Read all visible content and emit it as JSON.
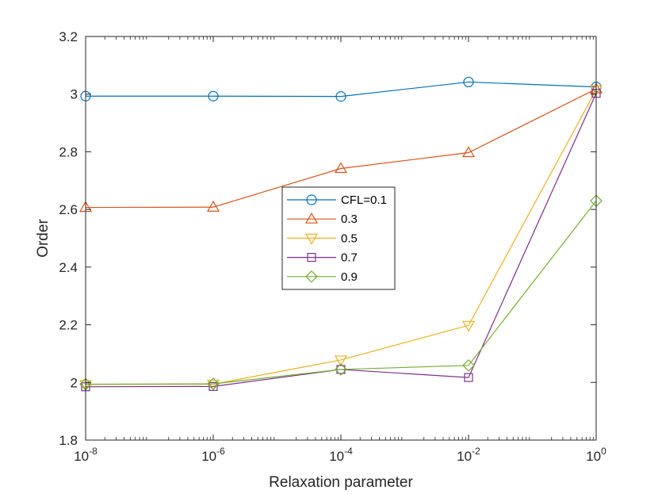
{
  "chart_data": {
    "type": "line",
    "xscale": "log",
    "x": [
      1e-08,
      1e-06,
      0.0001,
      0.01,
      1
    ],
    "xlim": [
      1e-08,
      1
    ],
    "ylim": [
      1.8,
      3.2
    ],
    "xlabel": "Relaxation parameter",
    "ylabel": "Order",
    "xticks": [
      {
        "value": 1e-08,
        "base": "10",
        "exp": "-8"
      },
      {
        "value": 1e-06,
        "base": "10",
        "exp": "-6"
      },
      {
        "value": 0.0001,
        "base": "10",
        "exp": "-4"
      },
      {
        "value": 0.01,
        "base": "10",
        "exp": "-2"
      },
      {
        "value": 1,
        "base": "10",
        "exp": "0"
      }
    ],
    "yticks": [
      {
        "value": 1.8,
        "label": "1.8"
      },
      {
        "value": 2.0,
        "label": "2"
      },
      {
        "value": 2.2,
        "label": "2.2"
      },
      {
        "value": 2.4,
        "label": "2.4"
      },
      {
        "value": 2.6,
        "label": "2.6"
      },
      {
        "value": 2.8,
        "label": "2.8"
      },
      {
        "value": 3.0,
        "label": "3"
      },
      {
        "value": 3.2,
        "label": "3.2"
      }
    ],
    "grid": false,
    "legend_position": "center",
    "series": [
      {
        "name": "CFL=0.1",
        "marker": "circle",
        "color": "#0072BD",
        "values": [
          2.993,
          2.993,
          2.992,
          3.042,
          3.025
        ]
      },
      {
        "name": "0.3",
        "marker": "triangle-up",
        "color": "#D95319",
        "values": [
          2.607,
          2.608,
          2.742,
          2.797,
          3.018
        ]
      },
      {
        "name": "0.5",
        "marker": "triangle-down",
        "color": "#EDB120",
        "values": [
          1.993,
          1.994,
          2.078,
          2.198,
          3.015
        ]
      },
      {
        "name": "0.7",
        "marker": "square",
        "color": "#7E2F8E",
        "values": [
          1.985,
          1.986,
          2.045,
          2.017,
          3.003
        ]
      },
      {
        "name": "0.9",
        "marker": "diamond",
        "color": "#77AC30",
        "values": [
          1.994,
          1.995,
          2.045,
          2.059,
          2.63
        ]
      }
    ]
  }
}
